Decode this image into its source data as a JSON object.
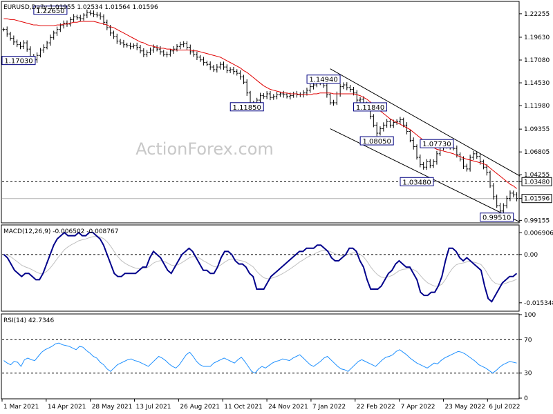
{
  "chart_data": {
    "type": "line",
    "watermark": "ActionForex.com",
    "x_labels": [
      "1 Mar 2021",
      "14 Apr 2021",
      "28 May 2021",
      "13 Jul 2021",
      "26 Aug 2021",
      "11 Oct 2021",
      "24 Nov 2021",
      "7 Jan 2022",
      "22 Feb 2022",
      "7 Apr 2022",
      "23 May 2022",
      "6 Jul 2022"
    ],
    "price_panel": {
      "title": "EURUSD,Daily  1.01955 1.02534 1.01564 1.01596",
      "symbol": "EURUSD",
      "timeframe": "Daily",
      "ohlc": {
        "open": 1.01955,
        "high": 1.02534,
        "low": 1.01564,
        "close": 1.01596
      },
      "y_ticks": [
        "1.22255",
        "1.19630",
        "1.17080",
        "1.14530",
        "1.11980",
        "1.09355",
        "1.06805",
        "1.04255",
        "0.99155"
      ],
      "ylim": [
        0.9895,
        1.2356
      ],
      "current_price": "1.01596",
      "level_line": "1.03480",
      "annotations": [
        {
          "label": "1.22650",
          "value": 1.2265,
          "x_index": 14
        },
        {
          "label": "1.17030",
          "value": 1.1703,
          "x_index": 2
        },
        {
          "label": "1.11850",
          "value": 1.1185,
          "x_index": 73
        },
        {
          "label": "1.14940",
          "value": 1.1494,
          "x_index": 96
        },
        {
          "label": "1.11840",
          "value": 1.1184,
          "x_index": 110
        },
        {
          "label": "1.08050",
          "value": 1.0805,
          "x_index": 112
        },
        {
          "label": "1.07730",
          "value": 1.0773,
          "x_index": 130
        },
        {
          "label": "1.03480",
          "value": 1.0348,
          "x_index": 124
        },
        {
          "label": "0.99510",
          "value": 0.9951,
          "x_index": 148
        }
      ],
      "channel": {
        "upper": [
          {
            "x_index": 98,
            "value": 1.161
          },
          {
            "x_index": 155,
            "value": 1.041
          }
        ],
        "lower": [
          {
            "x_index": 98,
            "value": 1.094
          },
          {
            "x_index": 155,
            "value": 0.9895
          }
        ]
      },
      "close_series": [
        1.205,
        1.2,
        1.195,
        1.191,
        1.188,
        1.186,
        1.19,
        1.183,
        1.175,
        1.171,
        1.176,
        1.182,
        1.185,
        1.19,
        1.196,
        1.201,
        1.205,
        1.209,
        1.212,
        1.211,
        1.216,
        1.219,
        1.218,
        1.217,
        1.221,
        1.224,
        1.223,
        1.222,
        1.221,
        1.219,
        1.213,
        1.207,
        1.201,
        1.197,
        1.192,
        1.19,
        1.188,
        1.187,
        1.186,
        1.187,
        1.185,
        1.181,
        1.177,
        1.179,
        1.182,
        1.185,
        1.183,
        1.18,
        1.177,
        1.177,
        1.181,
        1.183,
        1.186,
        1.188,
        1.189,
        1.185,
        1.18,
        1.177,
        1.174,
        1.171,
        1.168,
        1.166,
        1.163,
        1.16,
        1.163,
        1.166,
        1.163,
        1.159,
        1.16,
        1.158,
        1.156,
        1.152,
        1.146,
        1.134,
        1.122,
        1.12,
        1.126,
        1.131,
        1.13,
        1.133,
        1.129,
        1.13,
        1.132,
        1.133,
        1.132,
        1.13,
        1.131,
        1.133,
        1.132,
        1.132,
        1.134,
        1.137,
        1.141,
        1.143,
        1.146,
        1.147,
        1.142,
        1.132,
        1.123,
        1.123,
        1.133,
        1.141,
        1.143,
        1.14,
        1.138,
        1.134,
        1.126,
        1.127,
        1.122,
        1.118,
        1.108,
        1.098,
        1.089,
        1.094,
        1.098,
        1.102,
        1.098,
        1.101,
        1.102,
        1.104,
        1.098,
        1.091,
        1.081,
        1.074,
        1.062,
        1.054,
        1.051,
        1.057,
        1.053,
        1.057,
        1.066,
        1.073,
        1.075,
        1.074,
        1.075,
        1.072,
        1.065,
        1.06,
        1.052,
        1.049,
        1.062,
        1.066,
        1.063,
        1.057,
        1.051,
        1.045,
        1.03,
        1.018,
        1.008,
        1.002,
        1.008,
        1.016,
        1.022,
        1.02,
        1.016
      ],
      "sma_series": [
        1.217,
        1.217,
        1.216,
        1.216,
        1.215,
        1.214,
        1.213,
        1.212,
        1.211,
        1.21,
        1.21,
        1.209,
        1.209,
        1.209,
        1.209,
        1.209,
        1.21,
        1.21,
        1.211,
        1.211,
        1.212,
        1.213,
        1.213,
        1.214,
        1.214,
        1.214,
        1.214,
        1.214,
        1.213,
        1.212,
        1.211,
        1.21,
        1.208,
        1.207,
        1.205,
        1.203,
        1.201,
        1.199,
        1.197,
        1.195,
        1.193,
        1.191,
        1.19,
        1.188,
        1.187,
        1.186,
        1.185,
        1.184,
        1.184,
        1.183,
        1.183,
        1.182,
        1.182,
        1.182,
        1.182,
        1.182,
        1.182,
        1.181,
        1.181,
        1.18,
        1.179,
        1.178,
        1.177,
        1.176,
        1.175,
        1.174,
        1.172,
        1.17,
        1.168,
        1.166,
        1.164,
        1.162,
        1.159,
        1.157,
        1.154,
        1.151,
        1.148,
        1.145,
        1.142,
        1.14,
        1.138,
        1.137,
        1.136,
        1.135,
        1.134,
        1.134,
        1.133,
        1.133,
        1.133,
        1.132,
        1.132,
        1.132,
        1.132,
        1.133,
        1.133,
        1.134,
        1.134,
        1.134,
        1.134,
        1.133,
        1.133,
        1.133,
        1.133,
        1.133,
        1.133,
        1.133,
        1.132,
        1.131,
        1.129,
        1.127,
        1.124,
        1.121,
        1.117,
        1.114,
        1.111,
        1.108,
        1.105,
        1.103,
        1.101,
        1.099,
        1.097,
        1.095,
        1.093,
        1.09,
        1.087,
        1.084,
        1.081,
        1.078,
        1.075,
        1.073,
        1.071,
        1.07,
        1.069,
        1.068,
        1.067,
        1.066,
        1.064,
        1.063,
        1.061,
        1.06,
        1.059,
        1.058,
        1.057,
        1.056,
        1.055,
        1.053,
        1.05,
        1.047,
        1.044,
        1.041,
        1.038,
        1.035,
        1.032,
        1.03,
        1.027
      ]
    },
    "macd_panel": {
      "title": "MACD(12,26,9) -0.006502 -0.008767",
      "params": "12,26,9",
      "main_value": -0.006502,
      "signal_value": -0.008767,
      "y_ticks": [
        "0.006906",
        "0.00",
        "-0.015348"
      ],
      "ylim": [
        -0.0178,
        0.0092
      ],
      "colors": {
        "main": "#00008b",
        "signal": "#c0c0c0"
      },
      "main_series": [
        0.0,
        -0.001,
        -0.003,
        -0.005,
        -0.006,
        -0.007,
        -0.006,
        -0.006,
        -0.007,
        -0.008,
        -0.008,
        -0.006,
        -0.003,
        0.0,
        0.003,
        0.005,
        0.006,
        0.007,
        0.006,
        0.006,
        0.006,
        0.007,
        0.006,
        0.006,
        0.007,
        0.007,
        0.006,
        0.005,
        0.003,
        0.0,
        -0.003,
        -0.006,
        -0.007,
        -0.007,
        -0.006,
        -0.006,
        -0.006,
        -0.006,
        -0.005,
        -0.004,
        -0.004,
        -0.001,
        0.001,
        0.0,
        -0.001,
        -0.003,
        -0.005,
        -0.006,
        -0.004,
        -0.002,
        0.0,
        0.001,
        0.002,
        0.001,
        -0.001,
        -0.003,
        -0.005,
        -0.005,
        -0.006,
        -0.006,
        -0.004,
        -0.001,
        0.001,
        0.001,
        0.0,
        -0.002,
        -0.003,
        -0.003,
        -0.004,
        -0.006,
        -0.007,
        -0.011,
        -0.011,
        -0.011,
        -0.009,
        -0.007,
        -0.006,
        -0.005,
        -0.004,
        -0.003,
        -0.002,
        -0.001,
        0.0,
        0.001,
        0.001,
        0.002,
        0.002,
        0.002,
        0.003,
        0.003,
        0.002,
        0.001,
        -0.001,
        -0.002,
        -0.002,
        -0.001,
        0.0,
        0.002,
        0.002,
        0.001,
        -0.002,
        -0.004,
        -0.008,
        -0.011,
        -0.011,
        -0.011,
        -0.01,
        -0.008,
        -0.006,
        -0.005,
        -0.003,
        -0.002,
        -0.003,
        -0.004,
        -0.004,
        -0.006,
        -0.008,
        -0.012,
        -0.013,
        -0.013,
        -0.012,
        -0.012,
        -0.01,
        -0.007,
        -0.002,
        0.002,
        0.002,
        0.001,
        -0.001,
        -0.002,
        -0.001,
        -0.002,
        -0.003,
        -0.004,
        -0.005,
        -0.01,
        -0.014,
        -0.015,
        -0.013,
        -0.011,
        -0.009,
        -0.008,
        -0.007,
        -0.007,
        -0.006
      ]
    },
    "rsi_panel": {
      "title": "RSI(14) 42.7346",
      "period": 14,
      "value": 42.7346,
      "y_ticks": [
        "100",
        "70",
        "30",
        "0"
      ],
      "ylim": [
        0,
        100
      ],
      "levels": [
        70,
        30
      ],
      "color": "#1e90ff",
      "series": [
        45,
        42,
        40,
        44,
        43,
        38,
        46,
        48,
        46,
        45,
        50,
        55,
        58,
        60,
        62,
        65,
        66,
        64,
        63,
        62,
        60,
        58,
        62,
        61,
        57,
        54,
        50,
        48,
        43,
        40,
        35,
        32,
        36,
        40,
        42,
        44,
        46,
        47,
        45,
        44,
        42,
        40,
        38,
        42,
        46,
        50,
        48,
        45,
        41,
        38,
        36,
        40,
        46,
        52,
        55,
        50,
        44,
        40,
        38,
        38,
        38,
        42,
        44,
        46,
        48,
        46,
        44,
        42,
        46,
        49,
        44,
        38,
        32,
        30,
        35,
        38,
        36,
        39,
        42,
        44,
        45,
        47,
        46,
        45,
        48,
        50,
        52,
        48,
        44,
        40,
        38,
        41,
        44,
        48,
        50,
        46,
        42,
        38,
        35,
        34,
        32,
        36,
        40,
        44,
        46,
        44,
        42,
        40,
        38,
        42,
        46,
        49,
        50,
        52,
        56,
        58,
        55,
        52,
        48,
        45,
        42,
        40,
        38,
        36,
        39,
        42,
        41,
        45,
        48,
        50,
        52,
        54,
        56,
        55,
        53,
        50,
        47,
        44,
        40,
        38,
        36,
        33,
        30,
        33,
        37,
        40,
        42,
        44,
        43,
        42
      ]
    }
  }
}
